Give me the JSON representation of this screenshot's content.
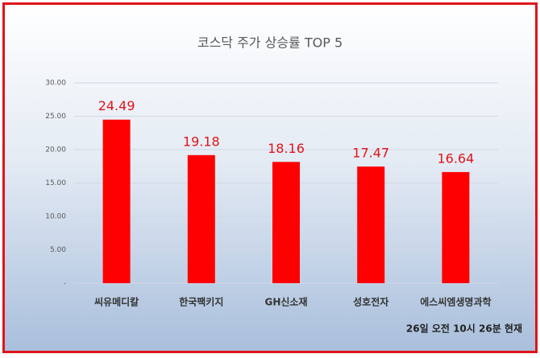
{
  "chart_data": {
    "type": "bar",
    "title": "코스닥 주가 상승률 TOP 5",
    "categories": [
      "씨유메디칼",
      "한국팩키지",
      "GH신소재",
      "성호전자",
      "에스씨엠생명과학"
    ],
    "values": [
      24.49,
      19.18,
      18.16,
      17.47,
      16.64
    ],
    "color": "#ff0000",
    "ylim": [
      0,
      30
    ],
    "yticks": [
      {
        "value": 0,
        "label": "-"
      },
      {
        "value": 5,
        "label": "5.00"
      },
      {
        "value": 10,
        "label": "10.00"
      },
      {
        "value": 15,
        "label": "15.00"
      },
      {
        "value": 20,
        "label": "20.00"
      },
      {
        "value": 25,
        "label": "25.00"
      },
      {
        "value": 30,
        "label": "30.00"
      }
    ],
    "grid": true,
    "annotation": "26일 오전 10시 26분 현재"
  }
}
